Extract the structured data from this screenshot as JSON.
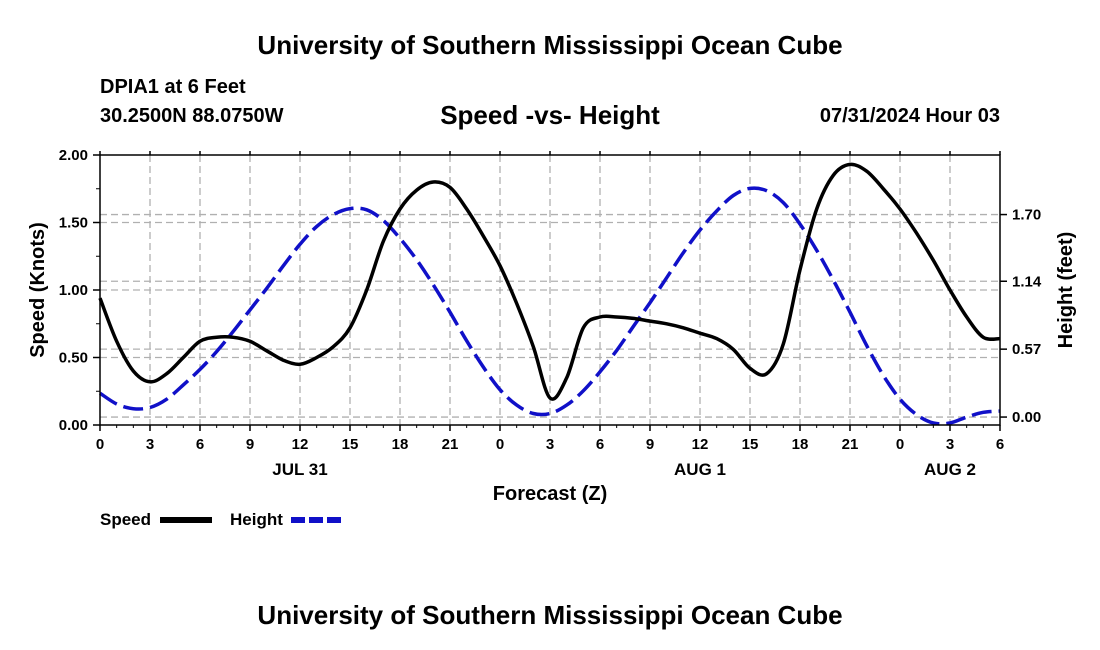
{
  "header": {
    "title": "University of Southern Mississippi Ocean Cube",
    "station": "DPIA1 at 6 Feet",
    "coords": "30.2500N  88.0750W",
    "datetime": "07/31/2024 Hour 03"
  },
  "footer": {
    "title": "University of Southern Mississippi Ocean Cube"
  },
  "colors": {
    "speed": "#000000",
    "height": "#1010c8",
    "grid": "#b0b0b0"
  },
  "chart_data": {
    "type": "line",
    "title": "Speed -vs- Height",
    "xlabel": "Forecast (Z)",
    "ylabel": "Speed (Knots)",
    "y2label": "Height (feet)",
    "x_unit": "hours from 07/31 00Z",
    "xlim": [
      0,
      54
    ],
    "ylim": [
      0,
      2.0
    ],
    "y2lim": [
      -0.0667,
      2.2
    ],
    "x_ticks": [
      0,
      3,
      6,
      9,
      12,
      15,
      18,
      21,
      24,
      27,
      30,
      33,
      36,
      39,
      42,
      45,
      48,
      51,
      54
    ],
    "x_tick_labels": [
      "0",
      "3",
      "6",
      "9",
      "12",
      "15",
      "18",
      "21",
      "0",
      "3",
      "6",
      "9",
      "12",
      "15",
      "18",
      "21",
      "0",
      "3",
      "6"
    ],
    "day_labels": [
      {
        "x": 12,
        "label": "JUL 31"
      },
      {
        "x": 36,
        "label": "AUG 1"
      },
      {
        "x": 51,
        "label": "AUG 2"
      }
    ],
    "y_ticks": [
      0.0,
      0.5,
      1.0,
      1.5,
      2.0
    ],
    "y_tick_labels": [
      "0.00",
      "0.50",
      "1.00",
      "1.50",
      "2.00"
    ],
    "y2_ticks": [
      0.0,
      0.57,
      1.14,
      1.7
    ],
    "y2_tick_labels": [
      "0.00",
      "0.57",
      "1.14",
      "1.70"
    ],
    "series": [
      {
        "name": "Speed",
        "axis": "left",
        "style": "solid",
        "x": [
          0,
          1,
          2,
          3,
          4,
          5,
          6,
          7,
          8,
          9,
          10,
          11,
          12,
          13,
          14,
          15,
          16,
          17,
          18,
          19,
          20,
          21,
          22,
          23,
          24,
          25,
          26,
          27,
          28,
          29,
          30,
          31,
          32,
          33,
          34,
          35,
          36,
          37,
          38,
          39,
          40,
          41,
          42,
          43,
          44,
          45,
          46,
          47,
          48,
          49,
          50,
          51,
          52,
          53,
          54
        ],
        "values": [
          0.94,
          0.62,
          0.4,
          0.32,
          0.38,
          0.5,
          0.62,
          0.65,
          0.65,
          0.62,
          0.55,
          0.48,
          0.45,
          0.5,
          0.58,
          0.72,
          1.0,
          1.36,
          1.6,
          1.74,
          1.8,
          1.76,
          1.6,
          1.4,
          1.18,
          0.9,
          0.58,
          0.2,
          0.35,
          0.72,
          0.8,
          0.8,
          0.79,
          0.77,
          0.75,
          0.72,
          0.68,
          0.64,
          0.56,
          0.42,
          0.38,
          0.6,
          1.15,
          1.6,
          1.85,
          1.93,
          1.88,
          1.75,
          1.6,
          1.42,
          1.22,
          1.0,
          0.8,
          0.65,
          0.64
        ]
      },
      {
        "name": "Height",
        "axis": "right",
        "style": "dashed",
        "x": [
          0,
          1,
          2,
          3,
          4,
          5,
          6,
          7,
          8,
          9,
          10,
          11,
          12,
          13,
          14,
          15,
          16,
          17,
          18,
          19,
          20,
          21,
          22,
          23,
          24,
          25,
          26,
          27,
          28,
          29,
          30,
          31,
          32,
          33,
          34,
          35,
          36,
          37,
          38,
          39,
          40,
          41,
          42,
          43,
          44,
          45,
          46,
          47,
          48,
          49,
          50,
          51,
          52,
          53,
          54
        ],
        "values": [
          0.2,
          0.11,
          0.07,
          0.08,
          0.15,
          0.27,
          0.4,
          0.55,
          0.72,
          0.9,
          1.08,
          1.27,
          1.45,
          1.6,
          1.7,
          1.75,
          1.74,
          1.65,
          1.5,
          1.32,
          1.11,
          0.88,
          0.64,
          0.42,
          0.23,
          0.1,
          0.03,
          0.03,
          0.1,
          0.22,
          0.38,
          0.56,
          0.76,
          0.96,
          1.17,
          1.38,
          1.57,
          1.73,
          1.86,
          1.92,
          1.9,
          1.8,
          1.62,
          1.4,
          1.15,
          0.88,
          0.6,
          0.35,
          0.15,
          0.02,
          -0.05,
          -0.05,
          0.0,
          0.04,
          0.05
        ]
      }
    ],
    "legend": [
      {
        "label": "Speed",
        "style": "solid"
      },
      {
        "label": "Height",
        "style": "dashed"
      }
    ]
  }
}
